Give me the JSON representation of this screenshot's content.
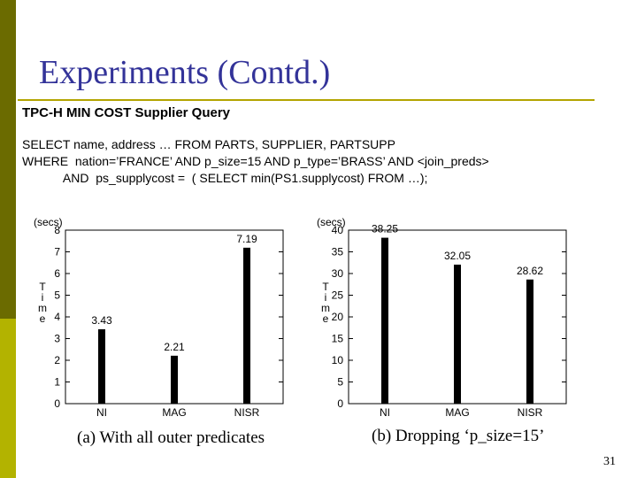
{
  "slide": {
    "title": "Experiments (Contd.)",
    "subtitle": "TPC-H MIN COST Supplier Query",
    "sql": [
      "SELECT name, address … FROM PARTS, SUPPLIER, PARTSUPP",
      "WHERE  nation=’FRANCE’ AND p_size=15 AND p_type=’BRASS’ AND <join_preds>",
      "            AND  ps_supplycost =  ( SELECT min(PS1.supplycost) FROM …);"
    ],
    "page_number": "31",
    "accent_color": "#333399",
    "side_bar_colors": [
      "#6b6b00",
      "#b3b300"
    ]
  },
  "chart_data": [
    {
      "type": "bar",
      "caption": "(a) With all outer predicates",
      "unit_label": "(secs)",
      "ylabel": "Time",
      "categories": [
        "NI",
        "MAG",
        "NISR"
      ],
      "values": [
        3.43,
        2.21,
        7.19
      ],
      "value_labels": [
        "3.43",
        "2.21",
        "7.19"
      ],
      "yticks": [
        0,
        1,
        2,
        3,
        4,
        5,
        6,
        7,
        8
      ],
      "ylim": [
        0,
        8
      ],
      "grid": false,
      "legend": "none"
    },
    {
      "type": "bar",
      "caption": "(b) Dropping ‘p_size=15’",
      "unit_label": "(secs)",
      "ylabel": "Time",
      "categories": [
        "NI",
        "MAG",
        "NISR"
      ],
      "values": [
        38.25,
        32.05,
        28.62
      ],
      "value_labels": [
        "38.25",
        "32.05",
        "28.62"
      ],
      "yticks": [
        0,
        5,
        10,
        15,
        20,
        25,
        30,
        35,
        40
      ],
      "ylim": [
        0,
        40
      ],
      "grid": false,
      "legend": "none"
    }
  ]
}
